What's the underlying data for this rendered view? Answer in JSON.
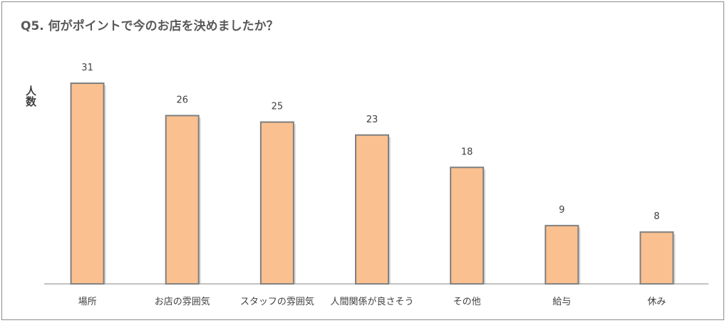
{
  "chart_data": {
    "type": "bar",
    "title": "Q5. 何がポイントで今のお店を決めましたか？",
    "ylabel": "人数",
    "xlabel": "",
    "categories": [
      "場所",
      "お店の雰囲気",
      "スタッフの雰囲気",
      "人間関係が良さそう",
      "その他",
      "給与",
      "休み"
    ],
    "values": [
      31,
      26,
      25,
      23,
      18,
      9,
      8
    ],
    "ylim": [
      0,
      31
    ],
    "grid": false,
    "legend": "none",
    "colors": {
      "bar_fill": "#FAC090",
      "bar_stroke": "#7F7F7F",
      "axis": "#868686",
      "text": "#404040",
      "title": "#595959"
    }
  }
}
